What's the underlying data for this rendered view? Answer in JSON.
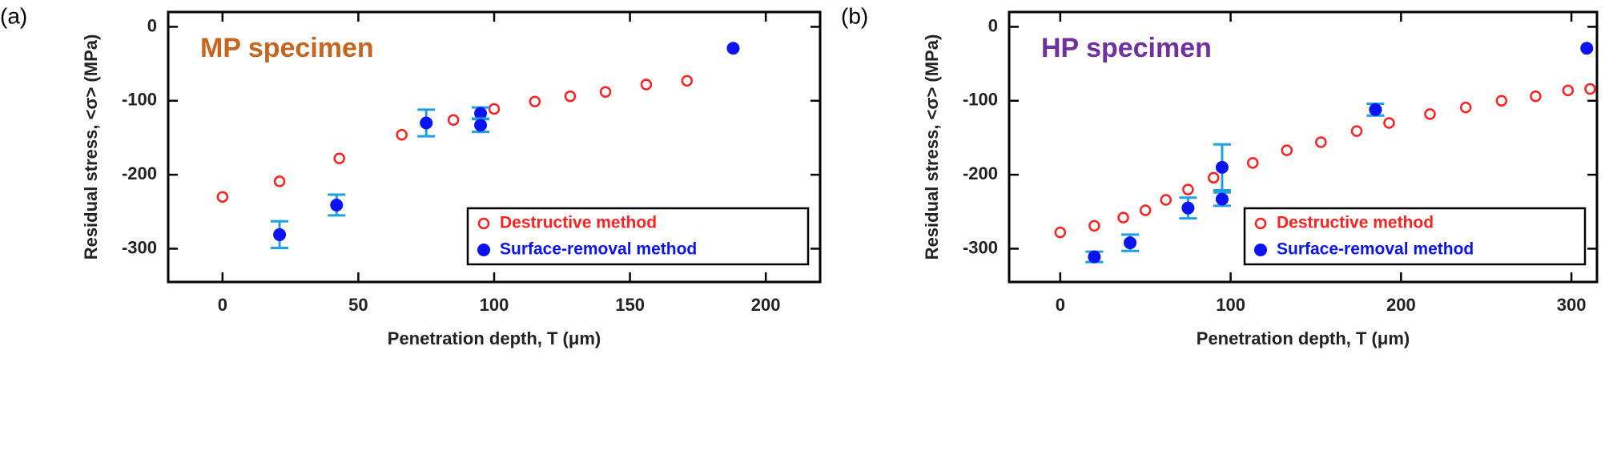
{
  "chart_data": [
    {
      "type": "scatter",
      "panel_label": "(a)",
      "title": "MP specimen",
      "title_color": "#c8641e",
      "xlabel": "Penetration depth, T (μm)",
      "ylabel": "Residual stress, <σ> (MPa)",
      "xlim": [
        -20,
        220
      ],
      "ylim": [
        -345,
        20
      ],
      "xticks": [
        0,
        50,
        100,
        150,
        200
      ],
      "yticks": [
        0,
        -100,
        -200,
        -300
      ],
      "legend": "lower right",
      "series": [
        {
          "name": "Destructive method",
          "color": "#ff2020",
          "marker": "open",
          "x": [
            0,
            21,
            43,
            66,
            85,
            100,
            115,
            128,
            141,
            156,
            171
          ],
          "values": [
            -230,
            -209,
            -178,
            -146,
            -126,
            -111,
            -101,
            -94,
            -88,
            -78,
            -73
          ]
        },
        {
          "name": "Surface-removal method",
          "color": "#0a14f0",
          "marker": "filled",
          "error_color": "#1ea0e6",
          "x": [
            21,
            42,
            75,
            95,
            95,
            188
          ],
          "values": [
            -281,
            -241,
            -130,
            -117,
            -133,
            -29
          ],
          "errors": [
            18,
            14,
            18,
            8,
            9,
            null
          ]
        }
      ]
    },
    {
      "type": "scatter",
      "panel_label": "(b)",
      "title": "HP specimen",
      "title_color": "#7030a0",
      "xlabel": "Penetration depth, T (μm)",
      "ylabel": "Residual stress, <σ> (MPa)",
      "xlim": [
        -30,
        315
      ],
      "ylim": [
        -345,
        20
      ],
      "xticks": [
        0,
        100,
        200,
        300
      ],
      "yticks": [
        0,
        -100,
        -200,
        -300
      ],
      "legend": "lower right",
      "series": [
        {
          "name": "Destructive method",
          "color": "#ff2020",
          "marker": "open",
          "x": [
            0,
            20,
            37,
            50,
            62,
            75,
            90,
            113,
            133,
            153,
            174,
            193,
            217,
            238,
            259,
            279,
            298,
            311
          ],
          "values": [
            -278,
            -269,
            -258,
            -248,
            -234,
            -220,
            -204,
            -184,
            -167,
            -156,
            -141,
            -130,
            -118,
            -109,
            -100,
            -94,
            -86,
            -84
          ]
        },
        {
          "name": "Surface-removal method",
          "color": "#0a14f0",
          "marker": "filled",
          "error_color": "#1ea0e6",
          "x": [
            20,
            41,
            75,
            95,
            95,
            185,
            309
          ],
          "values": [
            -311,
            -292,
            -245,
            -190,
            -233,
            -112,
            -29
          ],
          "errors": [
            7,
            11,
            14,
            31,
            9,
            8,
            null
          ]
        }
      ]
    }
  ]
}
